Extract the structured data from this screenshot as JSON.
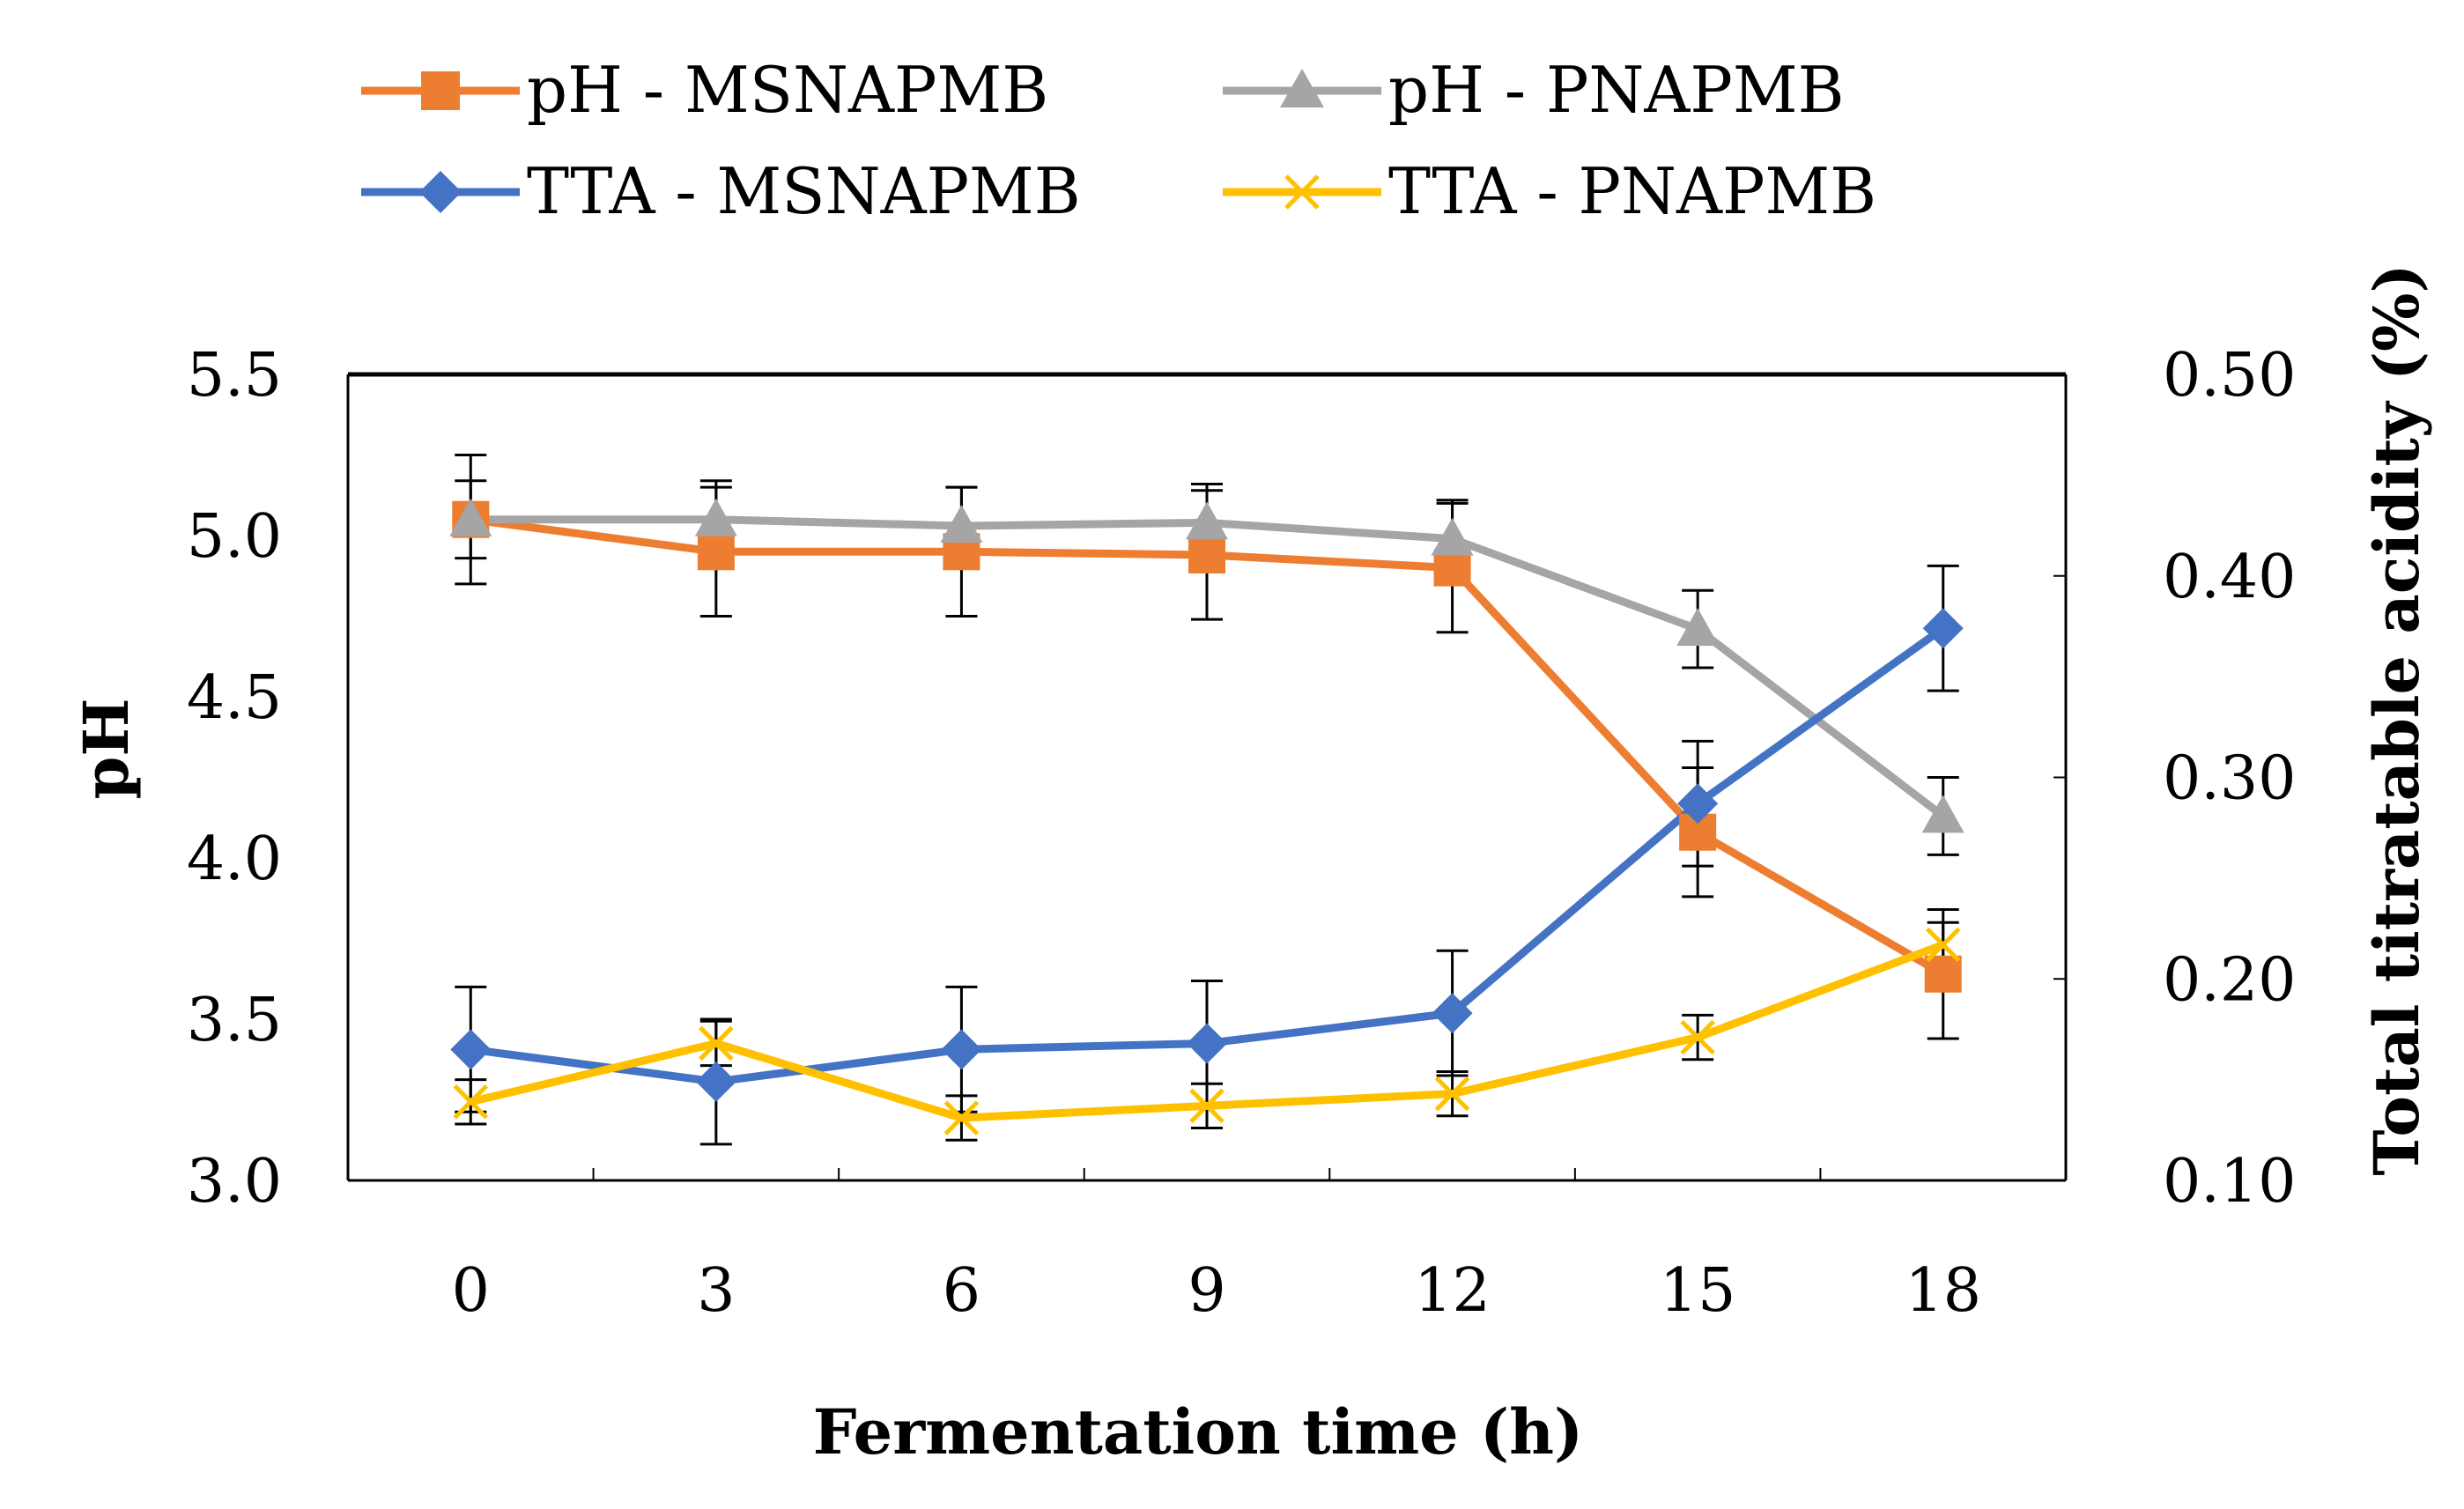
{
  "chart_data": {
    "type": "line",
    "xlabel": "Fermentation time (h)",
    "ylabel_left": "pH",
    "ylabel_right": "Total titratable acidity (%)",
    "categories": [
      "0",
      "3",
      "6",
      "9",
      "12",
      "15",
      "18"
    ],
    "x": [
      0,
      3,
      6,
      9,
      12,
      15,
      18
    ],
    "ylim_left": [
      3.0,
      5.5
    ],
    "ylim_right": [
      0.1,
      0.5
    ],
    "yticks_left": [
      "3.0",
      "3.5",
      "4.0",
      "4.5",
      "5.0",
      "5.5"
    ],
    "yticks_right": [
      "0.10",
      "0.20",
      "0.30",
      "0.40",
      "0.50"
    ],
    "legend_position": "top",
    "series": [
      {
        "name": "pH - MSNAPMB",
        "axis": "left",
        "color": "#ED7D31",
        "marker": "square",
        "values": [
          5.05,
          4.95,
          4.95,
          4.94,
          4.9,
          4.08,
          3.64
        ],
        "errors": [
          0.2,
          0.2,
          0.2,
          0.2,
          0.2,
          0.2,
          0.2
        ]
      },
      {
        "name": "pH - PNAPMB",
        "axis": "left",
        "color": "#A5A5A5",
        "marker": "triangle",
        "values": [
          5.05,
          5.05,
          5.03,
          5.04,
          4.99,
          4.71,
          4.13
        ],
        "errors": [
          0.12,
          0.12,
          0.12,
          0.12,
          0.12,
          0.12,
          0.12
        ]
      },
      {
        "name": "TTA - MSNAPMB",
        "axis": "right",
        "color": "#4472C4",
        "marker": "diamond",
        "values": [
          0.165,
          0.149,
          0.165,
          0.168,
          0.183,
          0.287,
          0.374
        ],
        "errors": [
          0.031,
          0.031,
          0.031,
          0.031,
          0.031,
          0.031,
          0.031
        ]
      },
      {
        "name": "TTA - PNAPMB",
        "axis": "right",
        "color": "#FFC000",
        "marker": "x",
        "values": [
          0.139,
          0.168,
          0.131,
          0.137,
          0.143,
          0.171,
          0.217
        ],
        "errors": [
          0.011,
          0.011,
          0.011,
          0.011,
          0.011,
          0.011,
          0.011
        ]
      }
    ]
  }
}
